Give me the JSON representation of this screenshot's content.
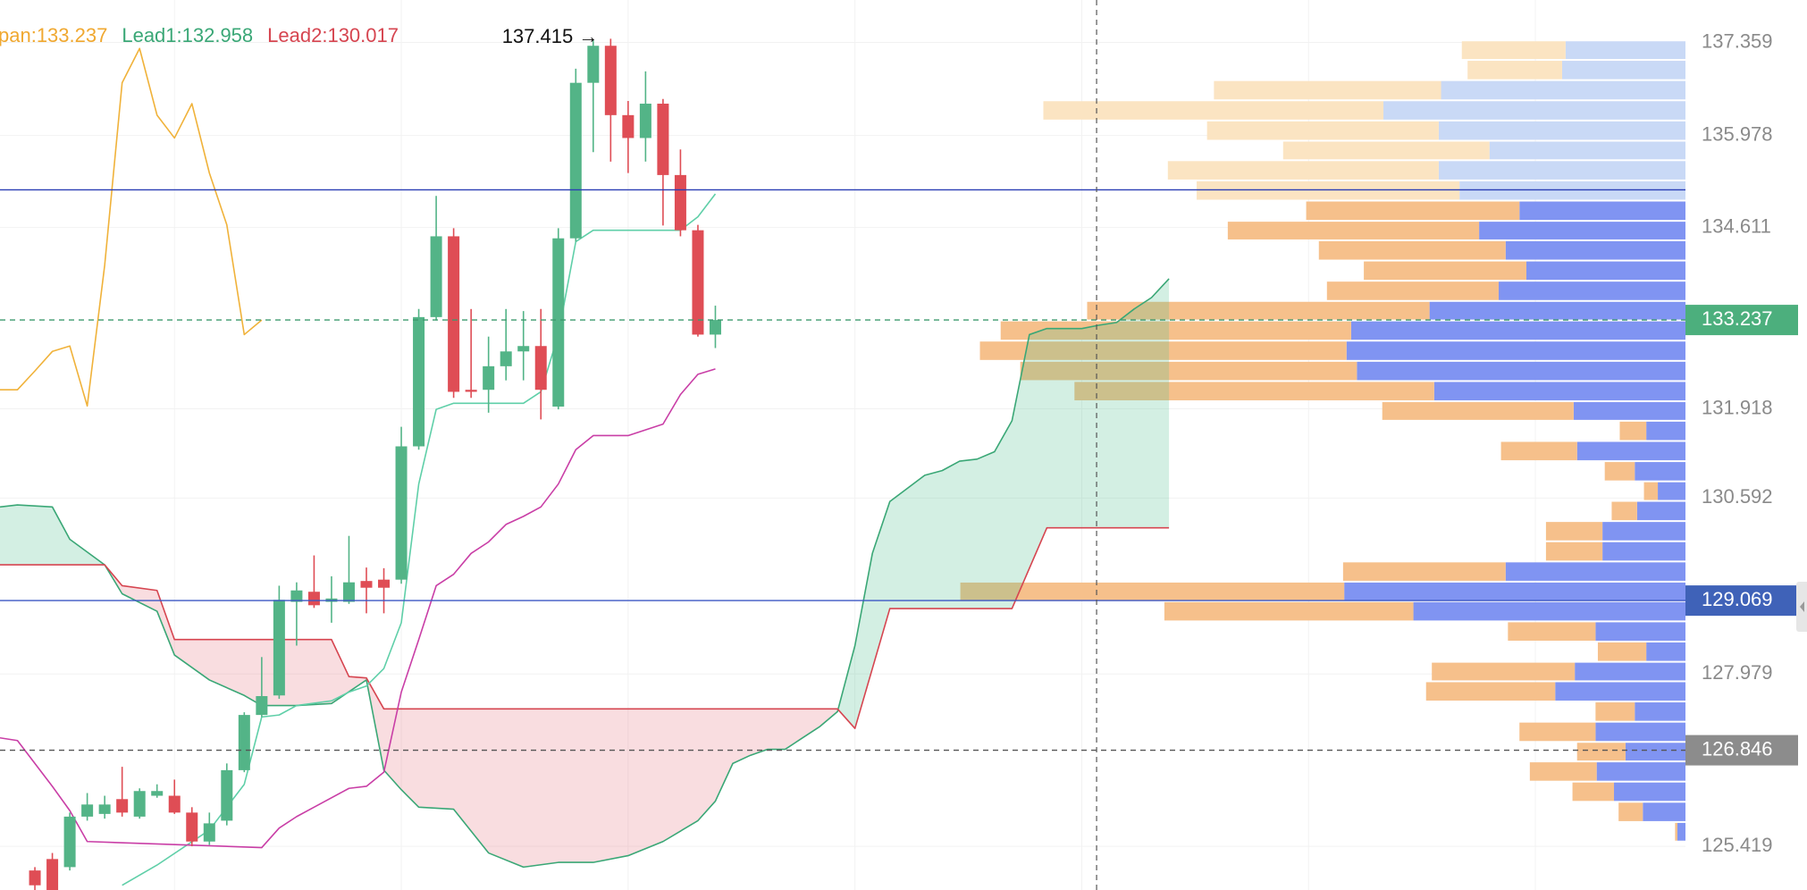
{
  "chart_data": {
    "type": "candlestick",
    "legend": [
      {
        "text": "pan:133.237",
        "color": "#f0a830"
      },
      {
        "text": "Lead1:132.958",
        "color": "#3aa776"
      },
      {
        "text": "Lead2:130.017",
        "color": "#d64550"
      }
    ],
    "high_label": "137.415 →",
    "xlim": [
      0,
      96.6
    ],
    "ylim": [
      124.77,
      137.99
    ],
    "yticks": [
      137.359,
      135.978,
      134.611,
      131.918,
      130.592,
      127.979,
      125.419
    ],
    "xticks": [
      10,
      23,
      36,
      49,
      62,
      75,
      88
    ],
    "grid": true,
    "candles": {
      "up_color": "#53b487",
      "down_color": "#df4d55",
      "x": [
        2,
        3,
        4,
        5,
        6,
        7,
        8,
        9,
        10,
        11,
        12,
        13,
        14,
        15,
        16,
        17,
        18,
        19,
        20,
        21,
        22,
        23,
        24,
        25,
        26,
        27,
        28,
        29,
        30,
        31,
        32,
        33,
        34,
        35,
        36,
        37,
        38,
        39,
        40,
        41
      ],
      "open": [
        125.06,
        125.23,
        125.11,
        125.86,
        125.9,
        126.12,
        125.86,
        126.17,
        126.17,
        125.92,
        125.49,
        125.8,
        126.55,
        127.37,
        127.66,
        129.05,
        129.2,
        129.05,
        129.05,
        129.36,
        129.38,
        129.38,
        131.36,
        133.28,
        134.48,
        132.2,
        132.2,
        132.55,
        132.77,
        132.85,
        131.95,
        134.45,
        136.76,
        137.31,
        136.28,
        135.94,
        136.45,
        135.39,
        134.57,
        133.02
      ],
      "high": [
        125.11,
        125.32,
        125.92,
        126.21,
        126.17,
        126.6,
        126.28,
        126.34,
        126.41,
        126.0,
        125.92,
        126.65,
        127.41,
        128.23,
        129.29,
        129.34,
        129.74,
        129.43,
        130.03,
        129.56,
        129.55,
        131.65,
        133.4,
        135.08,
        134.6,
        133.4,
        132.99,
        133.4,
        133.37,
        133.4,
        134.6,
        136.97,
        137.39,
        137.415,
        136.49,
        136.93,
        136.52,
        135.77,
        134.65,
        133.45
      ],
      "low": [
        124.77,
        124.77,
        125.06,
        125.8,
        125.83,
        125.86,
        125.83,
        126.14,
        125.9,
        125.42,
        125.44,
        125.73,
        126.52,
        127.34,
        127.61,
        128.4,
        128.96,
        128.74,
        129.02,
        128.88,
        128.88,
        129.32,
        131.31,
        133.23,
        132.08,
        132.08,
        131.86,
        132.34,
        132.34,
        131.76,
        131.91,
        134.4,
        135.73,
        135.59,
        135.42,
        135.59,
        134.64,
        134.48,
        132.99,
        132.82
      ],
      "close": [
        124.84,
        124.77,
        125.86,
        126.04,
        126.04,
        125.92,
        126.24,
        126.24,
        125.92,
        125.49,
        125.76,
        126.55,
        127.37,
        127.65,
        129.08,
        129.22,
        129.0,
        129.1,
        129.34,
        129.26,
        129.26,
        131.36,
        133.28,
        134.48,
        132.17,
        132.17,
        132.55,
        132.77,
        132.85,
        132.2,
        134.45,
        136.76,
        137.31,
        136.28,
        135.94,
        136.45,
        135.39,
        134.57,
        133.02,
        133.237
      ]
    },
    "lines": [
      {
        "color": "#5fcfa8",
        "x": [
          7,
          9,
          12,
          14,
          15,
          16,
          17,
          19,
          20,
          21,
          22,
          23,
          24,
          25,
          26,
          28,
          30,
          31,
          32,
          33,
          34,
          39,
          40,
          41
        ],
        "values": [
          124.84,
          125.14,
          125.66,
          126.34,
          127.34,
          127.37,
          127.51,
          127.58,
          127.71,
          127.8,
          128.06,
          128.74,
          130.8,
          131.91,
          132.0,
          132.0,
          132.0,
          132.17,
          133.02,
          134.4,
          134.57,
          134.57,
          134.77,
          135.11
        ]
      },
      {
        "color": "#c93ea6",
        "x": [
          0,
          1,
          3,
          4,
          5,
          15,
          16,
          17,
          18,
          20,
          21,
          22,
          23,
          24,
          25,
          26,
          27,
          28,
          29,
          30,
          31,
          32,
          33,
          34,
          36,
          38,
          39,
          40,
          41
        ],
        "values": [
          127.03,
          126.99,
          126.31,
          125.95,
          125.49,
          125.4,
          125.69,
          125.86,
          126.0,
          126.28,
          126.31,
          126.52,
          127.71,
          128.49,
          129.29,
          129.46,
          129.77,
          129.94,
          130.2,
          130.32,
          130.46,
          130.8,
          131.31,
          131.52,
          131.52,
          131.69,
          132.13,
          132.43,
          132.51
        ]
      },
      {
        "color": "#f0b23a",
        "x": [
          0,
          1,
          2,
          3,
          4,
          5,
          6,
          7,
          8,
          9,
          10,
          11,
          12,
          13,
          14,
          15
        ],
        "values": [
          132.2,
          132.2,
          132.48,
          132.77,
          132.85,
          131.96,
          134.05,
          136.76,
          137.27,
          136.28,
          135.94,
          136.45,
          135.42,
          134.65,
          133.02,
          133.237
        ]
      }
    ],
    "cloud": {
      "up_fill": "rgba(80,190,145,0.25)",
      "down_fill": "rgba(232,120,132,0.25)",
      "lead1": {
        "color": "#3aa776",
        "x": [
          0,
          1,
          3,
          4,
          6,
          7,
          9,
          10,
          12,
          14,
          15,
          17,
          19,
          21,
          22,
          23,
          24,
          26,
          28,
          30,
          32,
          34,
          36,
          38,
          40,
          41,
          42,
          43,
          44,
          45,
          46,
          47,
          48,
          49,
          50,
          51,
          53,
          54,
          55,
          56,
          57,
          58,
          59,
          60,
          62,
          63,
          64,
          65,
          66,
          67
        ],
        "values": [
          130.46,
          130.49,
          130.46,
          129.98,
          129.6,
          129.17,
          128.91,
          128.26,
          127.89,
          127.66,
          127.51,
          127.51,
          127.54,
          127.89,
          126.55,
          126.26,
          126.0,
          125.97,
          125.32,
          125.11,
          125.18,
          125.18,
          125.28,
          125.49,
          125.8,
          126.09,
          126.65,
          126.77,
          126.86,
          126.86,
          127.03,
          127.2,
          127.42,
          128.4,
          129.77,
          130.54,
          130.93,
          131.0,
          131.14,
          131.17,
          131.28,
          131.74,
          133.02,
          133.11,
          133.11,
          133.16,
          133.2,
          133.4,
          133.57,
          133.85
        ]
      },
      "lead2": {
        "color": "#d64550",
        "x": [
          0,
          6,
          7,
          9,
          10,
          12,
          19,
          20,
          21,
          22,
          48,
          49,
          51,
          58,
          60,
          67
        ],
        "values": [
          129.6,
          129.6,
          129.29,
          129.22,
          128.49,
          128.49,
          128.49,
          127.94,
          127.92,
          127.46,
          127.46,
          127.17,
          128.95,
          128.95,
          130.15,
          130.15
        ]
      }
    },
    "volume_profile": {
      "buy_color": "#8094f2",
      "sell_color": "#f6c08b",
      "faded_buy_color": "#c9d9f6",
      "faded_sell_color": "#fbe4c2",
      "value_area_high": 135.01,
      "levels": [
        137.39,
        137.1,
        136.8,
        136.5,
        136.2,
        135.9,
        135.61,
        135.31,
        135.01,
        134.71,
        134.42,
        134.12,
        133.82,
        133.52,
        133.23,
        132.93,
        132.63,
        132.33,
        132.03,
        131.74,
        131.44,
        131.14,
        130.84,
        130.55,
        130.25,
        129.95,
        129.65,
        129.35,
        129.06,
        128.76,
        128.46,
        128.16,
        127.87,
        127.57,
        127.27,
        126.97,
        126.68,
        126.38,
        126.08,
        125.78,
        125.49
      ],
      "buy": [
        104,
        107,
        212,
        262,
        214,
        170,
        214,
        196,
        144,
        179,
        156,
        138,
        162,
        222,
        290,
        294,
        285,
        218,
        97,
        34,
        94,
        44,
        24,
        42,
        72,
        72,
        156,
        296,
        236,
        78,
        34,
        96,
        113,
        44,
        78,
        52,
        77,
        62,
        37,
        7
      ],
      "sell": [
        90,
        82,
        197,
        295,
        201,
        179,
        235,
        228,
        185,
        218,
        162,
        141,
        149,
        297,
        304,
        318,
        292,
        312,
        166,
        23,
        66,
        26,
        12,
        22,
        49,
        49,
        141,
        333,
        216,
        76,
        42,
        124,
        112,
        34,
        66,
        42,
        58,
        36,
        21,
        2
      ]
    },
    "price_lines": [
      {
        "value": 135.17,
        "color": "#2a3db5",
        "dash": false
      },
      {
        "value": 133.237,
        "color": "#3d9a6e",
        "dash": true,
        "badge_color": "#4caf7d"
      },
      {
        "value": 129.069,
        "color": "#3b57c4",
        "dash": false,
        "badge_color": "#3f62b8"
      },
      {
        "value": 126.846,
        "color": "#555555",
        "dash": true,
        "badge_color": "#8c8c8c"
      }
    ],
    "crosshair_x": 62.85
  }
}
